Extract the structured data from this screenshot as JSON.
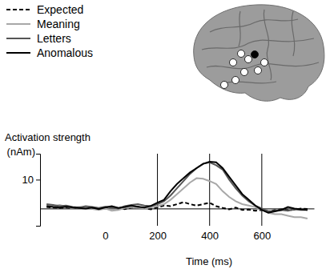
{
  "chart_data": {
    "type": "line",
    "ylabel": "Activation strength",
    "yunit": "(nAm)",
    "xlabel": "Time (ms)",
    "x": [
      -225,
      -200,
      -175,
      -150,
      -125,
      -100,
      -75,
      -50,
      -25,
      0,
      25,
      50,
      75,
      100,
      125,
      150,
      175,
      200,
      225,
      250,
      275,
      300,
      325,
      350,
      375,
      400,
      425,
      450,
      475,
      500,
      525,
      550,
      575,
      600,
      625,
      650,
      675,
      700,
      725,
      750,
      775
    ],
    "series": [
      {
        "name": "Expected",
        "color": "#000000",
        "line_style": "dashed",
        "values": [
          0.5,
          0.3,
          0.2,
          0.3,
          0.1,
          0.4,
          0.2,
          0,
          -0.3,
          0.2,
          0.5,
          0.1,
          -0.2,
          0.3,
          0.6,
          0.2,
          -0.3,
          0.4,
          1.0,
          0.8,
          1.5,
          2.2,
          1.5,
          1.0,
          1.5,
          2.0,
          0.8,
          0.2,
          -0.3,
          0.3,
          -0.5,
          -0.4,
          -0.8,
          -0.5,
          -1.0,
          -0.6,
          -0.3,
          -0.6,
          -0.4,
          0.0,
          -0.2
        ]
      },
      {
        "name": "Meaning",
        "color": "#a8a8a8",
        "line_style": "solid",
        "values": [
          1.0,
          0.8,
          1.2,
          0.6,
          0.2,
          0.5,
          0.3,
          -0.2,
          -0.5,
          0.0,
          -0.8,
          -0.5,
          0.2,
          0.5,
          0.3,
          0.0,
          0.4,
          0.8,
          1.5,
          3.0,
          5.0,
          7.0,
          9.0,
          10.5,
          10.3,
          9.5,
          8.5,
          6.0,
          4.0,
          2.5,
          1.5,
          1.0,
          0.5,
          -0.5,
          -1.5,
          -2.0,
          -2.0,
          -2.5,
          -3.0,
          -3.0,
          -3.5
        ]
      },
      {
        "name": "Letters",
        "color": "#555555",
        "line_style": "solid",
        "values": [
          1.5,
          1.2,
          0.8,
          1.0,
          0.5,
          0.3,
          0.8,
          0.5,
          0.2,
          0.6,
          0.3,
          0.0,
          0.8,
          1.2,
          1.5,
          1.0,
          0.8,
          1.5,
          2.5,
          4.5,
          7.0,
          9.5,
          12.0,
          14.0,
          15.5,
          16.0,
          15.0,
          13.5,
          10.0,
          7.0,
          4.5,
          2.5,
          1.0,
          0.0,
          -1.0,
          -0.8,
          -0.5,
          -0.8,
          -0.3,
          -0.5,
          -0.5
        ]
      },
      {
        "name": "Anomalous",
        "color": "#000000",
        "line_style": "solid",
        "values": [
          0.8,
          0.5,
          0.3,
          0.6,
          0.4,
          0.2,
          0.0,
          0.3,
          -0.2,
          0.4,
          0.8,
          0.2,
          0.5,
          1.0,
          0.6,
          0.3,
          0.9,
          2.0,
          3.0,
          6.0,
          8.5,
          10.5,
          12.5,
          14.0,
          15.5,
          16.2,
          16.0,
          14.0,
          11.0,
          8.0,
          5.0,
          3.0,
          1.0,
          -0.5,
          -1.5,
          -1.0,
          -0.5,
          0.5,
          0.0,
          -0.3,
          -0.5
        ]
      }
    ],
    "xlim": [
      -250,
      800
    ],
    "xticks": [
      0,
      200,
      400,
      600
    ],
    "ylim": [
      -6,
      19
    ],
    "yticks": [
      10
    ],
    "vlines": [
      200,
      400,
      600
    ],
    "legend": "top-left"
  }
}
